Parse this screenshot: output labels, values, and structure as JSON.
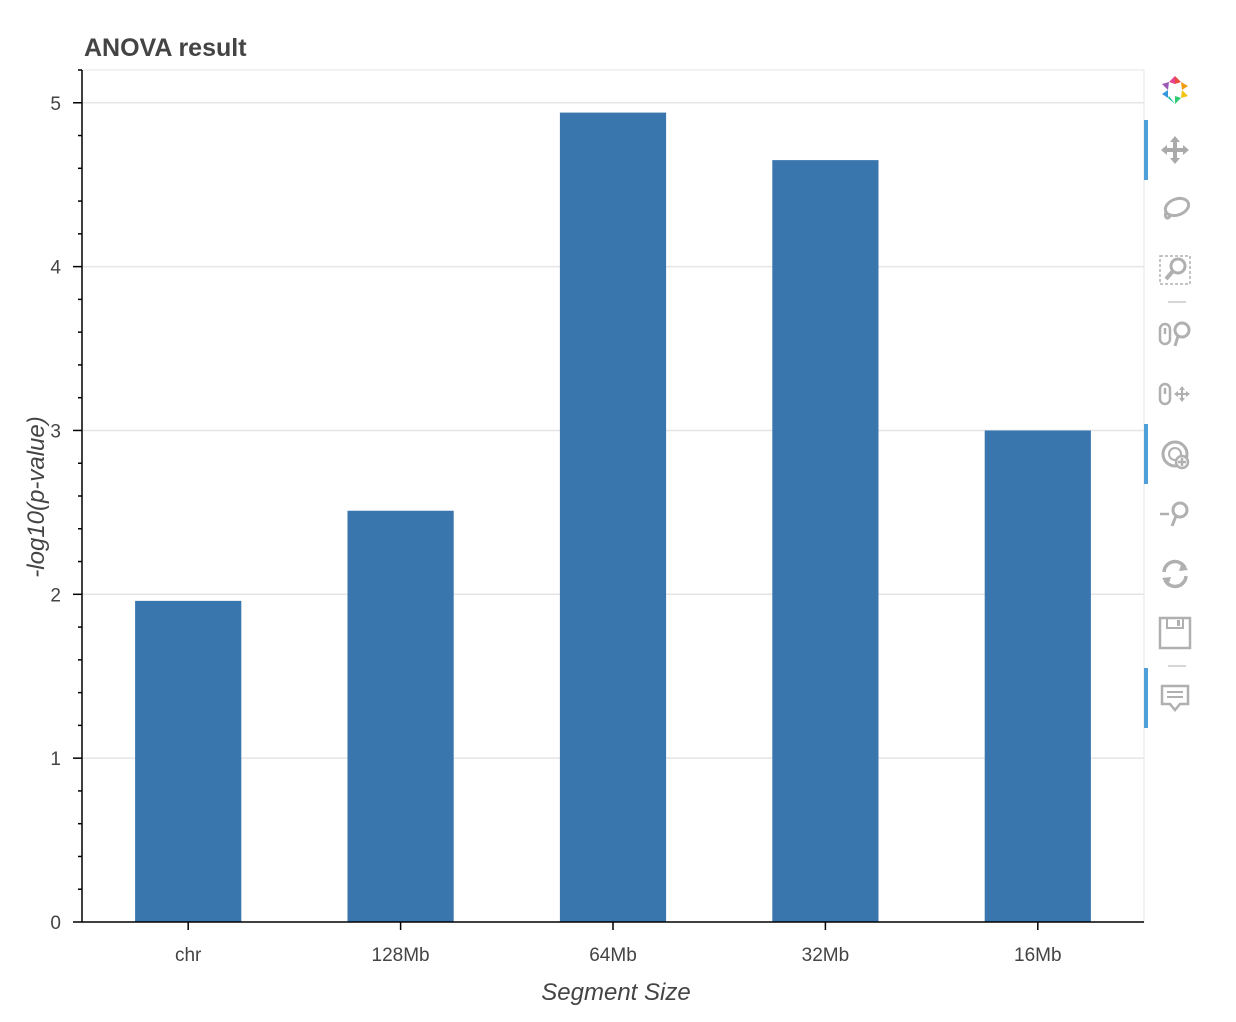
{
  "chart_data": {
    "type": "bar",
    "title": "ANOVA result",
    "xlabel": "Segment Size",
    "ylabel": "-log10(p-value)",
    "categories": [
      "chr",
      "128Mb",
      "64Mb",
      "32Mb",
      "16Mb"
    ],
    "values": [
      1.96,
      2.51,
      4.94,
      4.65,
      3.0
    ],
    "ylim": [
      0,
      5.2
    ],
    "yticks": [
      0,
      1,
      2,
      3,
      4,
      5
    ],
    "grid": true,
    "bar_color": "#3a76ae"
  },
  "toolbar": {
    "active_color": "#4ea0d8",
    "tools": [
      {
        "icon": "bokeh-logo-icon",
        "active": false
      },
      {
        "icon": "pan-icon",
        "active": true
      },
      {
        "icon": "lasso-select-icon",
        "active": false
      },
      {
        "icon": "box-zoom-icon",
        "active": false
      },
      {
        "icon": "xwheel-zoom-icon",
        "active": false
      },
      {
        "icon": "xwheel-pan-icon",
        "active": false
      },
      {
        "icon": "zoom-in-icon",
        "active": true
      },
      {
        "icon": "zoom-out-icon",
        "active": false
      },
      {
        "icon": "reset-icon",
        "active": false
      },
      {
        "icon": "save-icon",
        "active": false
      },
      {
        "icon": "hover-icon",
        "active": true
      }
    ]
  }
}
